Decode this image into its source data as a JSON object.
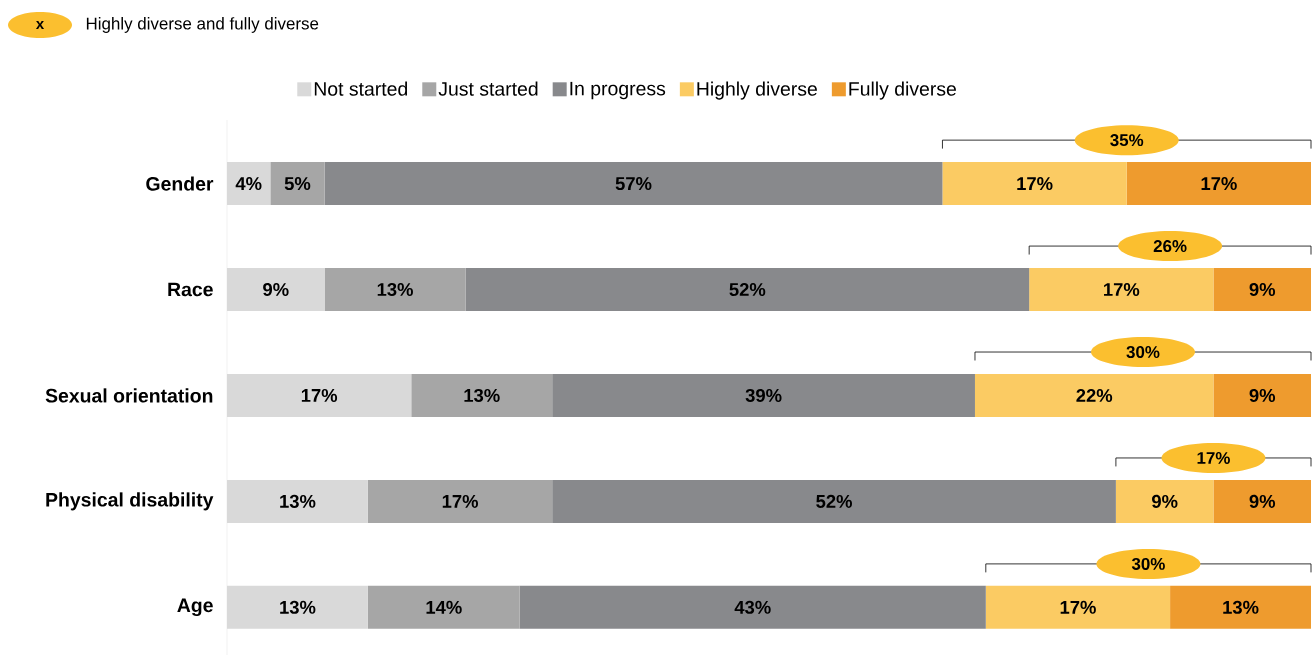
{
  "chart_data": {
    "type": "bar",
    "orientation": "horizontal",
    "stacked": true,
    "categories": [
      "Gender",
      "Race",
      "Sexual orientation",
      "Physical disability",
      "Age"
    ],
    "series": [
      {
        "name": "Not started",
        "color": "#d9d9d9",
        "values": [
          4,
          9,
          17,
          13,
          13
        ],
        "value_labels": [
          "4%",
          "9%",
          "17%",
          "13%",
          "13%"
        ]
      },
      {
        "name": "Just started",
        "color": "#a6a6a6",
        "values": [
          5,
          13,
          13,
          17,
          14
        ],
        "value_labels": [
          "5%",
          "13%",
          "13%",
          "17%",
          "14%"
        ]
      },
      {
        "name": "In progress",
        "color": "#88898c",
        "values": [
          57,
          52,
          39,
          52,
          43
        ],
        "value_labels": [
          "57%",
          "52%",
          "39%",
          "52%",
          "43%"
        ]
      },
      {
        "name": "Highly diverse",
        "color": "#fbcb63",
        "values": [
          17,
          17,
          22,
          9,
          17
        ],
        "value_labels": [
          "17%",
          "17%",
          "22%",
          "9%",
          "17%"
        ]
      },
      {
        "name": "Fully diverse",
        "color": "#ee9b2e",
        "values": [
          17,
          9,
          9,
          9,
          13
        ],
        "value_labels": [
          "17%",
          "9%",
          "9%",
          "9%",
          "13%"
        ]
      }
    ],
    "annotations": [
      "x",
      "Highly diverse and fully diverse",
      "35%",
      "26%",
      "30%",
      "17%",
      "30%"
    ],
    "tick_labels": "y",
    "legend": "top"
  }
}
